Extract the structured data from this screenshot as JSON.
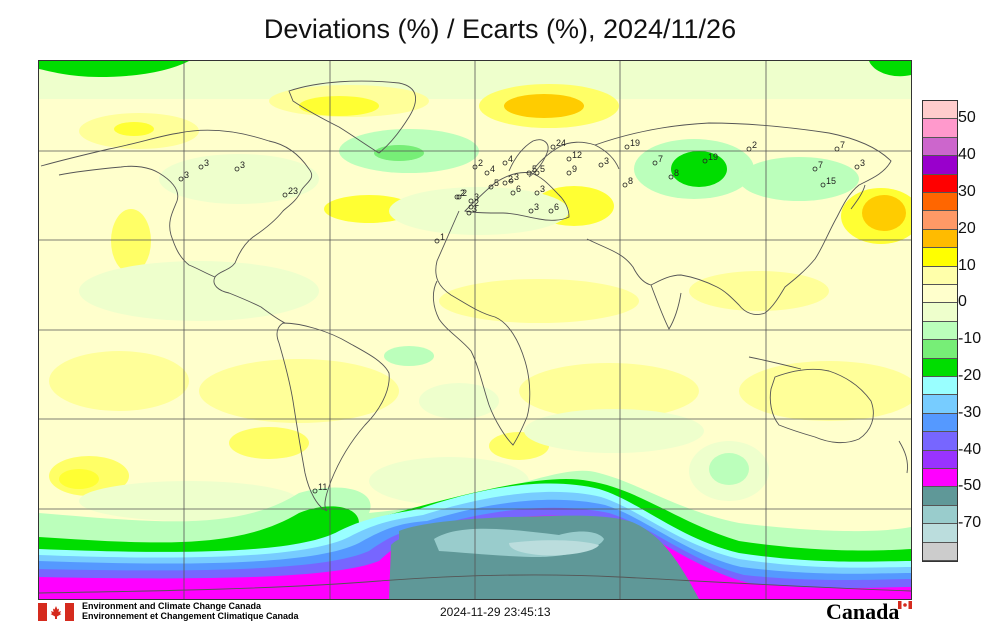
{
  "title": "Deviations (%) / Ecarts (%), 2024/11/26",
  "legend": {
    "labels": [
      "50",
      "40",
      "30",
      "20",
      "10",
      "0",
      "-10",
      "-20",
      "-30",
      "-40",
      "-50",
      "-70"
    ],
    "colors": [
      "#ffcccc",
      "#ff99cc",
      "#cc66cc",
      "#9900cc",
      "#ff0000",
      "#ff6600",
      "#ff9966",
      "#ffbb00",
      "#ffff00",
      "#ffffaa",
      "#ffffcc",
      "#eeffcc",
      "#bbffbb",
      "#77ee77",
      "#00dd00",
      "#99ffff",
      "#77ccff",
      "#5599ff",
      "#7766ff",
      "#9933ff",
      "#ff00ff",
      "#5f9898",
      "#99cccc",
      "#bbdddd",
      "#cccccc"
    ]
  },
  "stations": [
    "3",
    "3",
    "3",
    "23",
    "2",
    "3",
    "2",
    "4",
    "4",
    "5",
    "2",
    "3",
    "24",
    "12",
    "3",
    "5",
    "5",
    "9",
    "7",
    "19",
    "8",
    "8",
    "19",
    "2",
    "7",
    "7",
    "15",
    "3",
    "1",
    "2",
    "2",
    "11",
    "6",
    "3",
    "3",
    "3",
    "6"
  ],
  "footer": {
    "org_en": "Environment and Climate Change Canada",
    "org_fr": "Environnement et Changement Climatique Canada",
    "timestamp": "2024-11-29 23:45:13",
    "wordmark": "Canada"
  },
  "colors": {
    "ocean_base": "#ffffcc",
    "coast": "#555555",
    "grid": "#555555"
  }
}
